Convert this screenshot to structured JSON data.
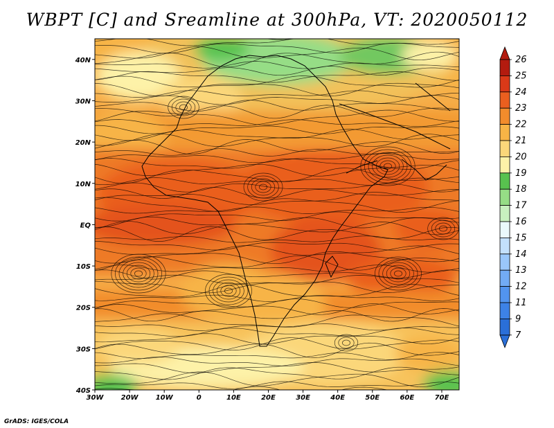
{
  "title": "WBPT [C] and Sreamline at 300hPa, VT: 2020050112",
  "credit": "GrADS: IGES/COLA",
  "map": {
    "lon_labels": [
      "30W",
      "20W",
      "10W",
      "0",
      "10E",
      "20E",
      "30E",
      "40E",
      "50E",
      "60E",
      "70E"
    ],
    "lat_labels": [
      "40N",
      "30N",
      "20N",
      "10N",
      "EQ",
      "10S",
      "20S",
      "30S",
      "40S"
    ],
    "lon_range": [
      -30,
      75
    ],
    "lat_range": [
      -40,
      45
    ]
  },
  "colorbar": {
    "labels": [
      "7",
      "9",
      "11",
      "12",
      "13",
      "14",
      "15",
      "16",
      "17",
      "18",
      "19",
      "20",
      "21",
      "22",
      "23",
      "24",
      "25",
      "26"
    ],
    "colors": [
      "#2a6fd8",
      "#3d82e6",
      "#5294ef",
      "#72abf5",
      "#9ac7fa",
      "#c3e0fc",
      "#eaf9fb",
      "#c8f0bf",
      "#96dd86",
      "#58c24f",
      "#fdf2a8",
      "#fbd77a",
      "#f7b446",
      "#f28c2c",
      "#ea5f1f",
      "#da3918",
      "#b31b0f"
    ]
  }
}
